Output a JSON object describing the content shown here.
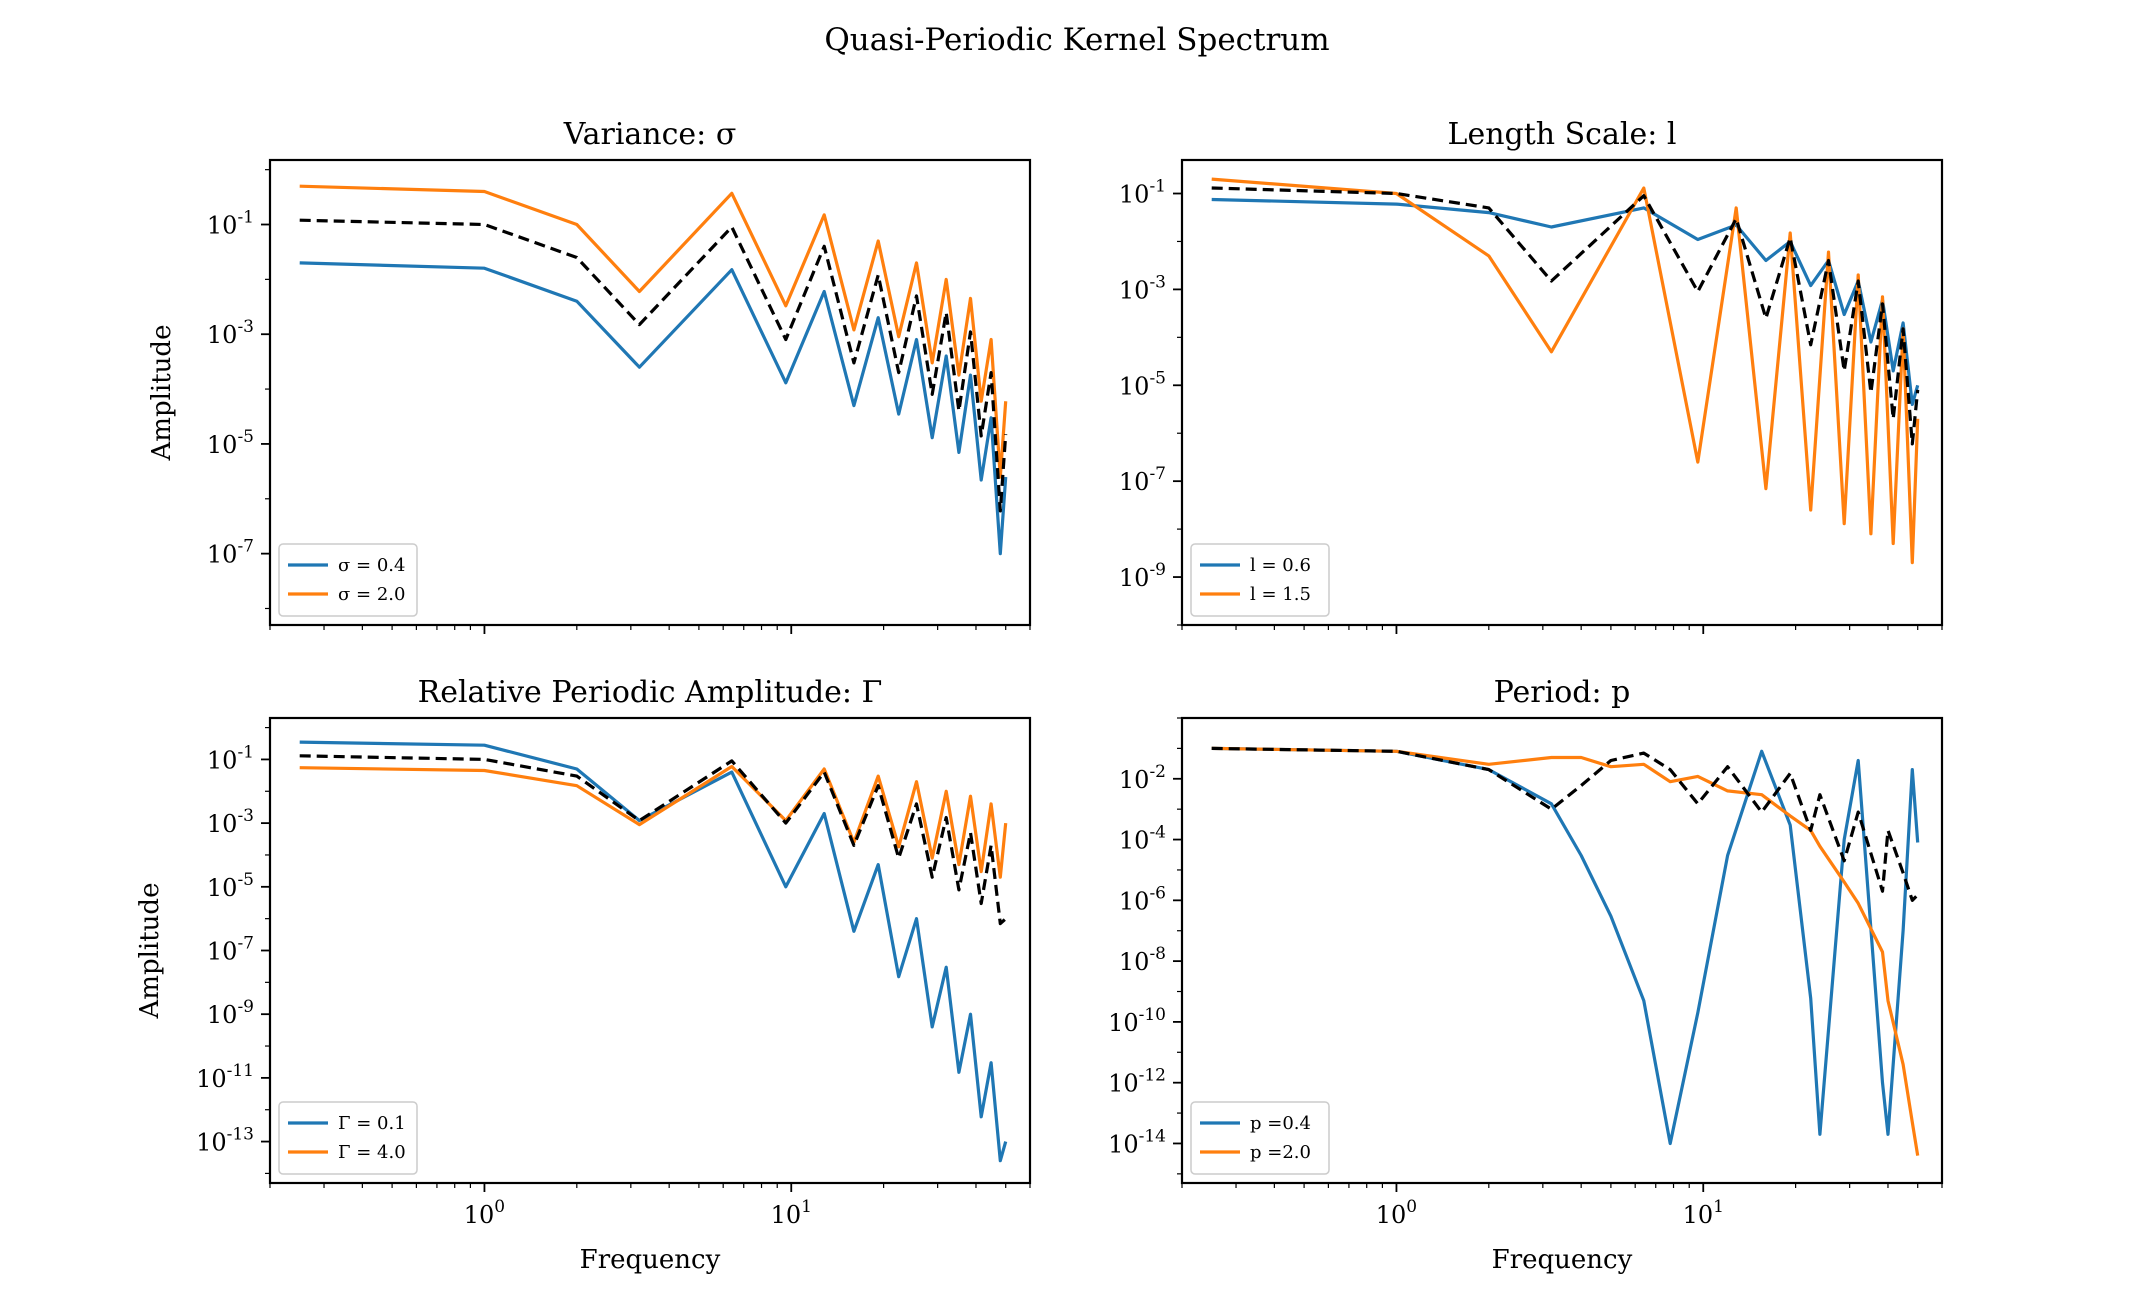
{
  "figure": {
    "title": "Quasi-Periodic Kernel Spectrum"
  },
  "chart_data": [
    {
      "type": "line",
      "title": "Variance: σ",
      "xlabel": "",
      "ylabel": "Amplitude",
      "xscale": "log",
      "yscale": "log",
      "xlim": [
        0.2,
        60
      ],
      "ylim": [
        5e-09,
        1.5
      ],
      "xticks": [
        1,
        10
      ],
      "yticks": [
        1e-07,
        1e-05,
        0.001,
        0.1
      ],
      "grid": false,
      "legend_position": "lower-left",
      "x": [
        0.25,
        1,
        2,
        3.2,
        6.4,
        9.6,
        12.8,
        16,
        19.2,
        22.4,
        25.6,
        28.8,
        32,
        35.2,
        38.4,
        41.6,
        44.8,
        48,
        50
      ],
      "series": [
        {
          "name": "σ = 0.4",
          "color": "#1f77b4",
          "style": "solid",
          "values": [
            0.02,
            0.016,
            0.004,
            0.00025,
            0.015,
            0.00013,
            0.006,
            5e-05,
            0.002,
            3.5e-05,
            0.0008,
            1.3e-05,
            0.0004,
            7e-06,
            0.00018,
            2.2e-06,
            3e-05,
            1e-07,
            2.5e-06
          ]
        },
        {
          "name": "σ = 2.0",
          "color": "#ff7f0e",
          "style": "solid",
          "values": [
            0.5,
            0.4,
            0.1,
            0.006,
            0.37,
            0.0033,
            0.15,
            0.0012,
            0.05,
            0.0009,
            0.02,
            0.0003,
            0.01,
            0.00018,
            0.0045,
            6e-05,
            0.0008,
            2.5e-06,
            6e-05
          ]
        },
        {
          "name": "",
          "color": "#000000",
          "style": "dashed",
          "values": [
            0.12,
            0.1,
            0.025,
            0.0015,
            0.09,
            0.0008,
            0.04,
            0.0003,
            0.012,
            0.0002,
            0.005,
            8e-05,
            0.0025,
            4e-05,
            0.0011,
            1.4e-05,
            0.0002,
            6e-07,
            1.5e-05
          ]
        }
      ]
    },
    {
      "type": "line",
      "title": "Length Scale: l",
      "xlabel": "",
      "ylabel": "",
      "xscale": "log",
      "yscale": "log",
      "xlim": [
        0.2,
        60
      ],
      "ylim": [
        1e-10,
        0.5
      ],
      "xticks": [
        1,
        10
      ],
      "yticks": [
        1e-09,
        1e-07,
        1e-05,
        0.001,
        0.1
      ],
      "grid": false,
      "legend_position": "lower-left",
      "x": [
        0.25,
        1,
        2,
        3.2,
        6.4,
        9.6,
        12.8,
        16,
        19.2,
        22.4,
        25.6,
        28.8,
        32,
        35.2,
        38.4,
        41.6,
        44.8,
        48,
        50
      ],
      "series": [
        {
          "name": "l = 0.6",
          "color": "#1f77b4",
          "style": "solid",
          "values": [
            0.075,
            0.06,
            0.04,
            0.02,
            0.05,
            0.011,
            0.022,
            0.004,
            0.01,
            0.0012,
            0.004,
            0.0003,
            0.0015,
            8e-05,
            0.0006,
            2e-05,
            0.0002,
            4e-06,
            1e-05
          ]
        },
        {
          "name": "l = 1.5",
          "color": "#ff7f0e",
          "style": "solid",
          "values": [
            0.2,
            0.1,
            0.005,
            5e-05,
            0.13,
            2.5e-07,
            0.05,
            7e-08,
            0.015,
            2.5e-08,
            0.006,
            1.3e-08,
            0.002,
            8e-09,
            0.0007,
            5e-09,
            0.00015,
            2e-09,
            2e-06
          ]
        },
        {
          "name": "",
          "color": "#000000",
          "style": "dashed",
          "values": [
            0.13,
            0.1,
            0.05,
            0.0015,
            0.09,
            0.0009,
            0.03,
            0.00025,
            0.012,
            7e-05,
            0.004,
            2e-05,
            0.0015,
            7e-06,
            0.0005,
            2e-06,
            0.00015,
            6e-07,
            8e-06
          ]
        }
      ]
    },
    {
      "type": "line",
      "title": "Relative Periodic Amplitude: Γ",
      "xlabel": "Frequency",
      "ylabel": "Amplitude",
      "xscale": "log",
      "yscale": "log",
      "xlim": [
        0.2,
        60
      ],
      "ylim": [
        5e-15,
        2
      ],
      "xticks": [
        1,
        10
      ],
      "yticks": [
        1e-13,
        1e-11,
        1e-09,
        1e-07,
        1e-05,
        0.001,
        0.1
      ],
      "grid": false,
      "legend_position": "lower-left",
      "x": [
        0.25,
        1,
        2,
        3.2,
        6.4,
        9.6,
        12.8,
        16,
        19.2,
        22.4,
        25.6,
        28.8,
        32,
        35.2,
        38.4,
        41.6,
        44.8,
        48,
        50
      ],
      "series": [
        {
          "name": "Γ = 0.1",
          "color": "#1f77b4",
          "style": "solid",
          "values": [
            0.35,
            0.28,
            0.05,
            0.0012,
            0.04,
            1e-05,
            0.002,
            4e-07,
            5e-05,
            1.5e-08,
            1e-06,
            4e-10,
            3e-08,
            1.5e-11,
            1e-09,
            6e-13,
            3e-11,
            2.5e-14,
            1e-13
          ]
        },
        {
          "name": "Γ = 4.0",
          "color": "#ff7f0e",
          "style": "solid",
          "values": [
            0.055,
            0.045,
            0.015,
            0.0009,
            0.06,
            0.0012,
            0.05,
            0.00025,
            0.03,
            0.00018,
            0.02,
            8e-05,
            0.01,
            5e-05,
            0.007,
            3e-05,
            0.004,
            2e-05,
            0.001
          ]
        },
        {
          "name": "",
          "color": "#000000",
          "style": "dashed",
          "values": [
            0.13,
            0.1,
            0.03,
            0.0012,
            0.09,
            0.001,
            0.04,
            0.0002,
            0.015,
            8e-05,
            0.004,
            2e-05,
            0.0015,
            8e-06,
            0.0005,
            3e-06,
            0.0002,
            7e-07,
            1e-06
          ]
        }
      ]
    },
    {
      "type": "line",
      "title": "Period: p",
      "xlabel": "Frequency",
      "ylabel": "",
      "xscale": "log",
      "yscale": "log",
      "xlim": [
        0.2,
        60
      ],
      "ylim": [
        5e-16,
        1
      ],
      "xticks": [
        1,
        10
      ],
      "yticks": [
        1e-14,
        1e-12,
        1e-10,
        1e-08,
        1e-06,
        0.0001,
        0.01
      ],
      "grid": false,
      "legend_position": "lower-left",
      "x": [
        0.25,
        1,
        2,
        3.2,
        4,
        5,
        6.4,
        7.8,
        9.6,
        12,
        15.5,
        19.2,
        22.4,
        24,
        28.8,
        32,
        38.4,
        40,
        44.8,
        48,
        50
      ],
      "series": [
        {
          "name": "p =0.4",
          "color": "#1f77b4",
          "style": "solid",
          "values": [
            0.1,
            0.08,
            0.02,
            0.0015,
            3e-05,
            3e-07,
            5e-10,
            1e-14,
            2e-10,
            3e-05,
            0.08,
            0.0003,
            6e-10,
            2e-14,
            0.0001,
            0.04,
            1e-12,
            2e-14,
            1e-07,
            0.02,
            8e-05
          ]
        },
        {
          "name": "p =2.0",
          "color": "#ff7f0e",
          "style": "solid",
          "values": [
            0.1,
            0.08,
            0.03,
            0.05,
            0.05,
            0.025,
            0.03,
            0.008,
            0.012,
            0.004,
            0.003,
            0.0006,
            0.0002,
            6e-05,
            4e-06,
            8e-07,
            2e-08,
            5e-10,
            4e-12,
            5e-14,
            4e-15
          ]
        },
        {
          "name": "",
          "color": "#000000",
          "style": "dashed",
          "values": [
            0.1,
            0.08,
            0.02,
            0.001,
            0.006,
            0.04,
            0.07,
            0.02,
            0.0015,
            0.025,
            0.0008,
            0.015,
            0.0002,
            0.003,
            2e-05,
            0.0008,
            2e-06,
            0.0002,
            8e-06,
            1e-06,
            1.5e-06
          ]
        }
      ]
    }
  ]
}
